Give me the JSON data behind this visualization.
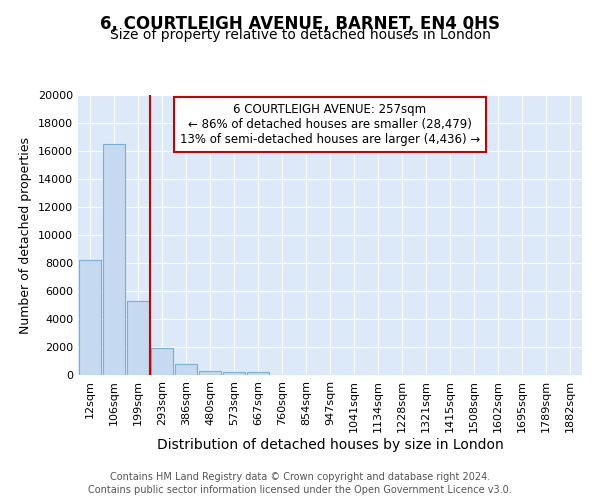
{
  "title": "6, COURTLEIGH AVENUE, BARNET, EN4 0HS",
  "subtitle": "Size of property relative to detached houses in London",
  "xlabel": "Distribution of detached houses by size in London",
  "ylabel": "Number of detached properties",
  "categories": [
    "12sqm",
    "106sqm",
    "199sqm",
    "293sqm",
    "386sqm",
    "480sqm",
    "573sqm",
    "667sqm",
    "760sqm",
    "854sqm",
    "947sqm",
    "1041sqm",
    "1134sqm",
    "1228sqm",
    "1321sqm",
    "1415sqm",
    "1508sqm",
    "1602sqm",
    "1695sqm",
    "1789sqm",
    "1882sqm"
  ],
  "values": [
    8200,
    16500,
    5300,
    1900,
    800,
    300,
    200,
    200,
    0,
    0,
    0,
    0,
    0,
    0,
    0,
    0,
    0,
    0,
    0,
    0,
    0
  ],
  "bar_color": "#c5d9f1",
  "bar_edge_color": "#7bafd4",
  "vline_x": 2.5,
  "vline_color": "#cc0000",
  "annotation_text": "6 COURTLEIGH AVENUE: 257sqm\n← 86% of detached houses are smaller (28,479)\n13% of semi-detached houses are larger (4,436) →",
  "annotation_box_color": "#ffffff",
  "annotation_box_edge": "#cc0000",
  "ylim": [
    0,
    20000
  ],
  "yticks": [
    0,
    2000,
    4000,
    6000,
    8000,
    10000,
    12000,
    14000,
    16000,
    18000,
    20000
  ],
  "footer_line1": "Contains HM Land Registry data © Crown copyright and database right 2024.",
  "footer_line2": "Contains public sector information licensed under the Open Government Licence v3.0.",
  "bg_color": "#dce9f8",
  "title_fontsize": 12,
  "subtitle_fontsize": 10,
  "xlabel_fontsize": 10,
  "ylabel_fontsize": 9,
  "tick_fontsize": 8,
  "footer_fontsize": 7
}
